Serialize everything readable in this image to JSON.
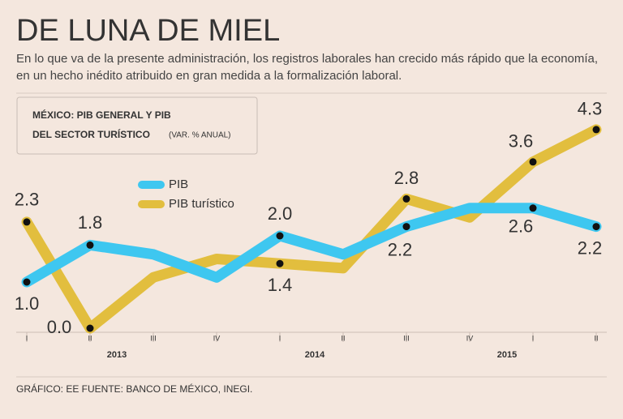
{
  "chart_data": {
    "type": "line",
    "title": "DE LUNA DE MIEL",
    "subtitle": "En lo que va de la presente administración, los registros laborales han crecido más rápido que la economía, en un hecho inédito atribuido en gran medida a la formalización laboral.",
    "box_title_line1": "MÉXICO: PIB GENERAL Y PIB",
    "box_title_line2": "DEL SECTOR TURÍSTICO",
    "box_unit": "(VAR. % ANUAL)",
    "footer": "GRÁFICO: EE  FUENTE: BANCO DE MÉXICO, INEGI.",
    "categories": [
      "I",
      "II",
      "III",
      "IV",
      "I",
      "II",
      "III",
      "IV",
      "I",
      "II"
    ],
    "year_labels": [
      "2013",
      "2014",
      "2015"
    ],
    "ylim": [
      0,
      5
    ],
    "series": [
      {
        "name": "PIB",
        "color": "#3ec7f0",
        "values": [
          1.0,
          1.8,
          1.6,
          1.1,
          2.0,
          1.6,
          2.2,
          2.6,
          2.6,
          2.2
        ],
        "value_labels": [
          "1.0",
          "1.8",
          null,
          null,
          "2.0",
          null,
          "2.2",
          null,
          "2.6",
          "2.2"
        ]
      },
      {
        "name": "PIB turístico",
        "color": "#e2be3e",
        "values": [
          2.3,
          0.0,
          1.1,
          1.5,
          1.4,
          1.3,
          2.8,
          2.4,
          3.6,
          4.3
        ],
        "value_labels": [
          "2.3",
          "0.0",
          null,
          null,
          "1.4",
          null,
          "2.8",
          null,
          "3.6",
          "4.3"
        ]
      }
    ]
  }
}
